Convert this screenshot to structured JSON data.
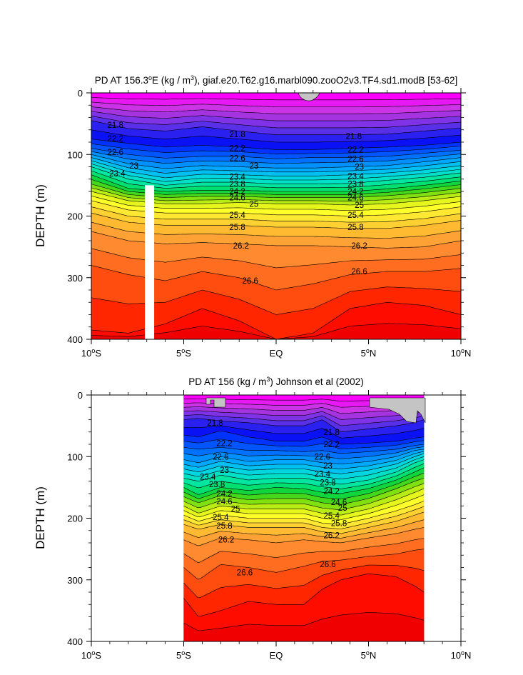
{
  "chart_data": [
    {
      "type": "contour",
      "title": "PD AT 156.3°E (kg / m³), giaf.e20.T62.g16.marbl090.zooO2v3.TF4.sd1.modB [53-62]",
      "title_parts": [
        "PD AT 156.3",
        "o",
        "E (kg / m",
        "3",
        "), giaf.e20.T62.g16.marbl090.zooO2v3.TF4.sd1.modB [53-62]"
      ],
      "xlabel": "",
      "ylabel": "DEPTH (m)",
      "xlim": [
        -10,
        10
      ],
      "ylim": [
        400,
        0
      ],
      "xticks": [
        {
          "value": -10,
          "num": "10",
          "deg": "o",
          "hem": "S"
        },
        {
          "value": -5,
          "num": "5",
          "deg": "o",
          "hem": "S"
        },
        {
          "value": 0,
          "num": "EQ",
          "deg": "",
          "hem": ""
        },
        {
          "value": 5,
          "num": "5",
          "deg": "o",
          "hem": "N"
        },
        {
          "value": 10,
          "num": "10",
          "deg": "o",
          "hem": "N"
        }
      ],
      "yticks": [
        0,
        100,
        200,
        300,
        400
      ],
      "data_xrange": [
        -10,
        10
      ],
      "masked_columns": [
        [
          -7.1,
          -6.6
        ]
      ],
      "contour_levels": [
        20.8,
        21.0,
        21.2,
        21.4,
        21.6,
        21.8,
        22.0,
        22.2,
        22.4,
        22.6,
        22.8,
        23.0,
        23.2,
        23.4,
        23.6,
        23.8,
        24.0,
        24.2,
        24.4,
        24.6,
        24.8,
        25.0,
        25.2,
        25.4,
        25.6,
        25.8,
        26.0,
        26.2,
        26.4,
        26.6,
        26.8,
        27.0,
        27.2
      ],
      "isopycnal_depth_m": {
        "x": [
          -10,
          -8,
          -6,
          -4,
          -2,
          0,
          2,
          4,
          6,
          8,
          10
        ],
        "series": [
          {
            "level": 21.8,
            "depth": [
              45,
              58,
              62,
              55,
              62,
              68,
              68,
              68,
              67,
              62,
              57
            ]
          },
          {
            "level": 22.2,
            "depth": [
              75,
              82,
              88,
              85,
              88,
              92,
              92,
              90,
              88,
              85,
              80
            ]
          },
          {
            "level": 22.6,
            "depth": [
              90,
              100,
              106,
              103,
              103,
              107,
              105,
              105,
              103,
              98,
              93
            ]
          },
          {
            "level": 23.0,
            "depth": [
              100,
              115,
              123,
              118,
              120,
              122,
              122,
              120,
              118,
              112,
              105
            ]
          },
          {
            "level": 23.4,
            "depth": [
              110,
              128,
              138,
              132,
              133,
              135,
              135,
              133,
              130,
              125,
              118
            ]
          },
          {
            "level": 23.8,
            "depth": [
              120,
              140,
              150,
              145,
              145,
              148,
              148,
              147,
              142,
              137,
              130
            ]
          },
          {
            "level": 24.2,
            "depth": [
              133,
              155,
              160,
              158,
              158,
              160,
              160,
              160,
              156,
              150,
              143
            ]
          },
          {
            "level": 24.6,
            "depth": [
              148,
              165,
              170,
              168,
              168,
              170,
              170,
              170,
              167,
              162,
              155
            ]
          },
          {
            "level": 25.0,
            "depth": [
              160,
              175,
              180,
              180,
              178,
              180,
              180,
              182,
              180,
              175,
              168
            ]
          },
          {
            "level": 25.4,
            "depth": [
              175,
              190,
              195,
              195,
              195,
              198,
              198,
              200,
              198,
              193,
              185
            ]
          },
          {
            "level": 25.8,
            "depth": [
              195,
              210,
              215,
              215,
              215,
              218,
              218,
              220,
              220,
              215,
              207
            ]
          },
          {
            "level": 26.2,
            "depth": [
              225,
              240,
              245,
              243,
              245,
              248,
              248,
              250,
              252,
              250,
              240
            ]
          },
          {
            "level": 26.6,
            "depth": [
              280,
              295,
              305,
              290,
              300,
              320,
              310,
              295,
              290,
              290,
              285
            ]
          },
          {
            "level": 27.0,
            "depth": [
              385,
              390,
              375,
              350,
              370,
              400,
              390,
              350,
              340,
              345,
              360
            ]
          }
        ]
      },
      "labeled_contours": [
        {
          "text": "21.8",
          "x": -8.7,
          "y": 52
        },
        {
          "text": "21.8",
          "x": -2.1,
          "y": 67
        },
        {
          "text": "21.8",
          "x": 4.2,
          "y": 70
        },
        {
          "text": "22.2",
          "x": -8.7,
          "y": 74
        },
        {
          "text": "22.2",
          "x": -2.1,
          "y": 90
        },
        {
          "text": "22.2",
          "x": 4.3,
          "y": 92
        },
        {
          "text": "22.6",
          "x": -8.7,
          "y": 96
        },
        {
          "text": "22.6",
          "x": -2.1,
          "y": 106
        },
        {
          "text": "22.6",
          "x": 4.3,
          "y": 107
        },
        {
          "text": "23",
          "x": -7.7,
          "y": 118
        },
        {
          "text": "23",
          "x": -1.2,
          "y": 118
        },
        {
          "text": "23",
          "x": 4.5,
          "y": 120
        },
        {
          "text": "23.4",
          "x": -8.6,
          "y": 131
        },
        {
          "text": "23.4",
          "x": -2.1,
          "y": 136
        },
        {
          "text": "23.4",
          "x": 4.3,
          "y": 135
        },
        {
          "text": "23.8",
          "x": -2.1,
          "y": 148
        },
        {
          "text": "23.8",
          "x": 4.3,
          "y": 148
        },
        {
          "text": "24.2",
          "x": -2.1,
          "y": 160
        },
        {
          "text": "24.2",
          "x": 4.3,
          "y": 160
        },
        {
          "text": "24.6",
          "x": -2.1,
          "y": 170
        },
        {
          "text": "24.6",
          "x": 4.3,
          "y": 170
        },
        {
          "text": "25",
          "x": -1.2,
          "y": 180
        },
        {
          "text": "25",
          "x": 4.5,
          "y": 182
        },
        {
          "text": "25.4",
          "x": -2.1,
          "y": 198
        },
        {
          "text": "25.4",
          "x": 4.3,
          "y": 198
        },
        {
          "text": "25.8",
          "x": -2.1,
          "y": 218
        },
        {
          "text": "25.8",
          "x": 4.3,
          "y": 218
        },
        {
          "text": "26.2",
          "x": -1.9,
          "y": 248
        },
        {
          "text": "26.2",
          "x": 4.5,
          "y": 248
        },
        {
          "text": "26.6",
          "x": -1.4,
          "y": 305
        },
        {
          "text": "26.6",
          "x": 4.5,
          "y": 290
        }
      ]
    },
    {
      "type": "contour",
      "title": "PD AT 156 (kg / m³) Johnson et al (2002)",
      "title_parts": [
        "PD AT 156 (kg / m",
        "3",
        ") Johnson et al (2002)"
      ],
      "xlabel": "",
      "ylabel": "DEPTH (m)",
      "xlim": [
        -10,
        10
      ],
      "ylim": [
        400,
        0
      ],
      "xticks": [
        {
          "value": -10,
          "num": "10",
          "deg": "o",
          "hem": "S"
        },
        {
          "value": -5,
          "num": "5",
          "deg": "o",
          "hem": "S"
        },
        {
          "value": 0,
          "num": "EQ",
          "deg": "",
          "hem": ""
        },
        {
          "value": 5,
          "num": "5",
          "deg": "o",
          "hem": "N"
        },
        {
          "value": 10,
          "num": "10",
          "deg": "o",
          "hem": "N"
        }
      ],
      "yticks": [
        0,
        100,
        200,
        300,
        400
      ],
      "data_xrange": [
        -5,
        8
      ],
      "masked_columns": [],
      "contour_levels": [
        20.8,
        21.0,
        21.2,
        21.4,
        21.6,
        21.8,
        22.0,
        22.2,
        22.4,
        22.6,
        22.8,
        23.0,
        23.2,
        23.4,
        23.6,
        23.8,
        24.0,
        24.2,
        24.4,
        24.6,
        24.8,
        25.0,
        25.2,
        25.4,
        25.6,
        25.8,
        26.0,
        26.2,
        26.4,
        26.6,
        26.8,
        27.0,
        27.2
      ],
      "isopycnal_depth_m": {
        "x": [
          -5,
          -4.2,
          -3,
          -1.5,
          0,
          1.5,
          2.5,
          3.5,
          5,
          6.5,
          7.5,
          8
        ],
        "series": [
          {
            "level": 21.8,
            "depth": [
              40,
              38,
              42,
              45,
              50,
              50,
              40,
              60,
              55,
              50,
              45,
              40
            ]
          },
          {
            "level": 22.2,
            "depth": [
              65,
              68,
              58,
              68,
              75,
              75,
              68,
              80,
              78,
              75,
              70,
              68
            ]
          },
          {
            "level": 22.6,
            "depth": [
              85,
              88,
              85,
              90,
              90,
              92,
              90,
              95,
              92,
              88,
              82,
              80
            ]
          },
          {
            "level": 23.0,
            "depth": [
              105,
              110,
              100,
              108,
              105,
              105,
              110,
              112,
              108,
              100,
              90,
              88
            ]
          },
          {
            "level": 23.4,
            "depth": [
              120,
              125,
              115,
              122,
              120,
              120,
              125,
              128,
              122,
              112,
              100,
              95
            ]
          },
          {
            "level": 23.8,
            "depth": [
              135,
              140,
              130,
              138,
              135,
              135,
              140,
              145,
              138,
              125,
              110,
              105
            ]
          },
          {
            "level": 24.2,
            "depth": [
              150,
              162,
              150,
              155,
              150,
              152,
              158,
              160,
              152,
              138,
              125,
              118
            ]
          },
          {
            "level": 24.6,
            "depth": [
              165,
              175,
              163,
              170,
              168,
              168,
              175,
              178,
              168,
              152,
              140,
              135
            ]
          },
          {
            "level": 25.0,
            "depth": [
              180,
              192,
              180,
              185,
              185,
              185,
              192,
              195,
              185,
              170,
              158,
              152
            ]
          },
          {
            "level": 25.4,
            "depth": [
              195,
              205,
              195,
              200,
              200,
              200,
              208,
              210,
              200,
              188,
              178,
              172
            ]
          },
          {
            "level": 25.8,
            "depth": [
              210,
              218,
              210,
              215,
              215,
              215,
              222,
              225,
              215,
              205,
              195,
              190
            ]
          },
          {
            "level": 26.2,
            "depth": [
              235,
              245,
              232,
              235,
              240,
              235,
              238,
              240,
              232,
              225,
              218,
              215
            ]
          },
          {
            "level": 26.6,
            "depth": [
              280,
              300,
              275,
              280,
              288,
              278,
              270,
              268,
              262,
              258,
              252,
              250
            ]
          },
          {
            "level": 27.0,
            "depth": [
              330,
              360,
              350,
              335,
              340,
              340,
              315,
              300,
              290,
              295,
              310,
              320
            ]
          }
        ]
      },
      "labeled_contours": [
        {
          "text": "21.8",
          "x": -3.3,
          "y": 45
        },
        {
          "text": "21.8",
          "x": 3.0,
          "y": 60
        },
        {
          "text": "22.2",
          "x": -2.8,
          "y": 78
        },
        {
          "text": "22.2",
          "x": 3.0,
          "y": 80
        },
        {
          "text": "22.6",
          "x": -3.0,
          "y": 100
        },
        {
          "text": "22.6",
          "x": 2.5,
          "y": 100
        },
        {
          "text": "23",
          "x": -2.8,
          "y": 122
        },
        {
          "text": "23",
          "x": 2.8,
          "y": 115
        },
        {
          "text": "23.4",
          "x": -3.7,
          "y": 133
        },
        {
          "text": "23.4",
          "x": 2.5,
          "y": 128
        },
        {
          "text": "23.8",
          "x": -3.2,
          "y": 145
        },
        {
          "text": "23.8",
          "x": 2.8,
          "y": 142
        },
        {
          "text": "24.2",
          "x": -2.8,
          "y": 160
        },
        {
          "text": "24.2",
          "x": 3.0,
          "y": 156
        },
        {
          "text": "24.6",
          "x": -2.8,
          "y": 173
        },
        {
          "text": "24.6",
          "x": 3.4,
          "y": 174
        },
        {
          "text": "25",
          "x": -2.2,
          "y": 185
        },
        {
          "text": "25",
          "x": 3.6,
          "y": 183
        },
        {
          "text": "25.4",
          "x": -3.0,
          "y": 198
        },
        {
          "text": "25.4",
          "x": 3.0,
          "y": 196
        },
        {
          "text": "25.8",
          "x": -2.8,
          "y": 212
        },
        {
          "text": "25.8",
          "x": 3.4,
          "y": 208
        },
        {
          "text": "26.2",
          "x": -2.7,
          "y": 235
        },
        {
          "text": "26.2",
          "x": 3.0,
          "y": 228
        },
        {
          "text": "26.6",
          "x": -1.7,
          "y": 288
        },
        {
          "text": "26.6",
          "x": 2.8,
          "y": 275
        }
      ],
      "annotations": [
        "grey no-data patches near the surface at ~3.5°S and 5–8°N"
      ]
    }
  ],
  "colors": {
    "palette": [
      "#ff00ff",
      "#e619f3",
      "#cc33e6",
      "#a533e0",
      "#8033e6",
      "#5a2fe8",
      "#2a20ef",
      "#0a12f5",
      "#0033ff",
      "#0055ff",
      "#0070ff",
      "#0090ff",
      "#00a8ff",
      "#00c0f2",
      "#00d5e0",
      "#00e0c8",
      "#00e6a0",
      "#00e070",
      "#10d53c",
      "#44d81c",
      "#80e010",
      "#b8ec14",
      "#e6f51c",
      "#ffff2a",
      "#ffe832",
      "#ffd032",
      "#ffba32",
      "#ffa236",
      "#ff8a30",
      "#ff6d20",
      "#ff4d10",
      "#ff2600",
      "#ff0c00",
      "#f00000",
      "#dd0000",
      "#cc0000"
    ],
    "missing": "#c4c4c4",
    "mask": "#ffffff",
    "contour_line": "#000000"
  }
}
